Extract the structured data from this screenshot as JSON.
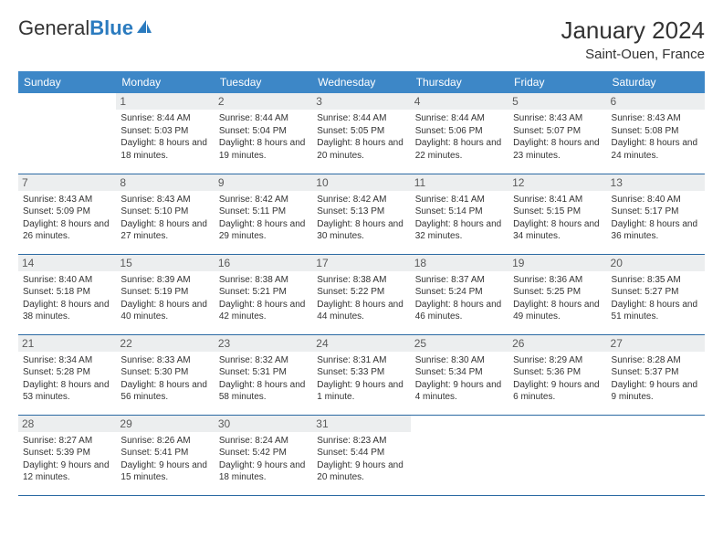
{
  "logo": {
    "part1": "General",
    "part2": "Blue"
  },
  "title": "January 2024",
  "location": "Saint-Ouen, France",
  "colors": {
    "header_bg": "#3d87c7",
    "header_text": "#ffffff",
    "daynum_bg": "#eceeef",
    "row_border": "#2b6aa3",
    "body_text": "#333333",
    "logo_gray": "#555555",
    "logo_blue": "#2b7bbf",
    "page_bg": "#ffffff"
  },
  "weekdays": [
    "Sunday",
    "Monday",
    "Tuesday",
    "Wednesday",
    "Thursday",
    "Friday",
    "Saturday"
  ],
  "weeks": [
    [
      {
        "n": "",
        "sunrise": "",
        "sunset": "",
        "daylight": ""
      },
      {
        "n": "1",
        "sunrise": "8:44 AM",
        "sunset": "5:03 PM",
        "daylight": "8 hours and 18 minutes."
      },
      {
        "n": "2",
        "sunrise": "8:44 AM",
        "sunset": "5:04 PM",
        "daylight": "8 hours and 19 minutes."
      },
      {
        "n": "3",
        "sunrise": "8:44 AM",
        "sunset": "5:05 PM",
        "daylight": "8 hours and 20 minutes."
      },
      {
        "n": "4",
        "sunrise": "8:44 AM",
        "sunset": "5:06 PM",
        "daylight": "8 hours and 22 minutes."
      },
      {
        "n": "5",
        "sunrise": "8:43 AM",
        "sunset": "5:07 PM",
        "daylight": "8 hours and 23 minutes."
      },
      {
        "n": "6",
        "sunrise": "8:43 AM",
        "sunset": "5:08 PM",
        "daylight": "8 hours and 24 minutes."
      }
    ],
    [
      {
        "n": "7",
        "sunrise": "8:43 AM",
        "sunset": "5:09 PM",
        "daylight": "8 hours and 26 minutes."
      },
      {
        "n": "8",
        "sunrise": "8:43 AM",
        "sunset": "5:10 PM",
        "daylight": "8 hours and 27 minutes."
      },
      {
        "n": "9",
        "sunrise": "8:42 AM",
        "sunset": "5:11 PM",
        "daylight": "8 hours and 29 minutes."
      },
      {
        "n": "10",
        "sunrise": "8:42 AM",
        "sunset": "5:13 PM",
        "daylight": "8 hours and 30 minutes."
      },
      {
        "n": "11",
        "sunrise": "8:41 AM",
        "sunset": "5:14 PM",
        "daylight": "8 hours and 32 minutes."
      },
      {
        "n": "12",
        "sunrise": "8:41 AM",
        "sunset": "5:15 PM",
        "daylight": "8 hours and 34 minutes."
      },
      {
        "n": "13",
        "sunrise": "8:40 AM",
        "sunset": "5:17 PM",
        "daylight": "8 hours and 36 minutes."
      }
    ],
    [
      {
        "n": "14",
        "sunrise": "8:40 AM",
        "sunset": "5:18 PM",
        "daylight": "8 hours and 38 minutes."
      },
      {
        "n": "15",
        "sunrise": "8:39 AM",
        "sunset": "5:19 PM",
        "daylight": "8 hours and 40 minutes."
      },
      {
        "n": "16",
        "sunrise": "8:38 AM",
        "sunset": "5:21 PM",
        "daylight": "8 hours and 42 minutes."
      },
      {
        "n": "17",
        "sunrise": "8:38 AM",
        "sunset": "5:22 PM",
        "daylight": "8 hours and 44 minutes."
      },
      {
        "n": "18",
        "sunrise": "8:37 AM",
        "sunset": "5:24 PM",
        "daylight": "8 hours and 46 minutes."
      },
      {
        "n": "19",
        "sunrise": "8:36 AM",
        "sunset": "5:25 PM",
        "daylight": "8 hours and 49 minutes."
      },
      {
        "n": "20",
        "sunrise": "8:35 AM",
        "sunset": "5:27 PM",
        "daylight": "8 hours and 51 minutes."
      }
    ],
    [
      {
        "n": "21",
        "sunrise": "8:34 AM",
        "sunset": "5:28 PM",
        "daylight": "8 hours and 53 minutes."
      },
      {
        "n": "22",
        "sunrise": "8:33 AM",
        "sunset": "5:30 PM",
        "daylight": "8 hours and 56 minutes."
      },
      {
        "n": "23",
        "sunrise": "8:32 AM",
        "sunset": "5:31 PM",
        "daylight": "8 hours and 58 minutes."
      },
      {
        "n": "24",
        "sunrise": "8:31 AM",
        "sunset": "5:33 PM",
        "daylight": "9 hours and 1 minute."
      },
      {
        "n": "25",
        "sunrise": "8:30 AM",
        "sunset": "5:34 PM",
        "daylight": "9 hours and 4 minutes."
      },
      {
        "n": "26",
        "sunrise": "8:29 AM",
        "sunset": "5:36 PM",
        "daylight": "9 hours and 6 minutes."
      },
      {
        "n": "27",
        "sunrise": "8:28 AM",
        "sunset": "5:37 PM",
        "daylight": "9 hours and 9 minutes."
      }
    ],
    [
      {
        "n": "28",
        "sunrise": "8:27 AM",
        "sunset": "5:39 PM",
        "daylight": "9 hours and 12 minutes."
      },
      {
        "n": "29",
        "sunrise": "8:26 AM",
        "sunset": "5:41 PM",
        "daylight": "9 hours and 15 minutes."
      },
      {
        "n": "30",
        "sunrise": "8:24 AM",
        "sunset": "5:42 PM",
        "daylight": "9 hours and 18 minutes."
      },
      {
        "n": "31",
        "sunrise": "8:23 AM",
        "sunset": "5:44 PM",
        "daylight": "9 hours and 20 minutes."
      },
      {
        "n": "",
        "sunrise": "",
        "sunset": "",
        "daylight": ""
      },
      {
        "n": "",
        "sunrise": "",
        "sunset": "",
        "daylight": ""
      },
      {
        "n": "",
        "sunrise": "",
        "sunset": "",
        "daylight": ""
      }
    ]
  ],
  "labels": {
    "sunrise": "Sunrise:",
    "sunset": "Sunset:",
    "daylight": "Daylight:"
  }
}
